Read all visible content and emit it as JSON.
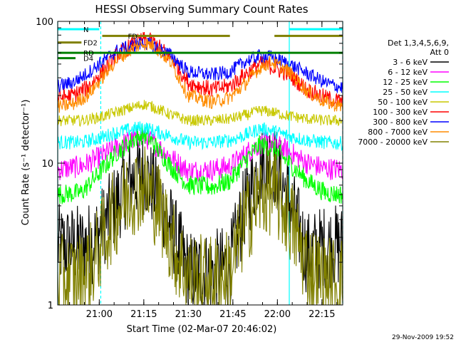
{
  "chart_data": {
    "type": "line",
    "title": "HESSI Observing Summary Count Rates",
    "xlabel": "Start Time (02-Mar-07 20:46:02)",
    "ylabel": "Count Rate (s⁻¹ detector⁻¹)",
    "yscale": "log",
    "ylim": [
      1,
      100
    ],
    "xlim_minutes": [
      0,
      96
    ],
    "x_tick_labels": [
      "21:00",
      "21:15",
      "21:30",
      "21:45",
      "22:00",
      "22:15"
    ],
    "x_tick_minutes": [
      14,
      29,
      44,
      59,
      74,
      89
    ],
    "y_tick_labels": [
      "1",
      "10",
      "100"
    ],
    "y_tick_values": [
      1,
      10,
      100
    ],
    "legend_title": [
      "Det 1,3,4,5,6,9,",
      "Att 0"
    ],
    "legend_placement": "right",
    "timestamp": "29-Nov-2009 19:52",
    "series": [
      {
        "name": "3 - 6 keV",
        "color": "#000000",
        "x": [
          0,
          8,
          12,
          18,
          24,
          29,
          34,
          40,
          44,
          52,
          58,
          63,
          68,
          72,
          78,
          84,
          90,
          96
        ],
        "values": [
          2.6,
          2.6,
          2.8,
          4.5,
          7.5,
          8.5,
          6.0,
          2.8,
          1.7,
          1.7,
          1.9,
          5.0,
          9.5,
          11,
          5.5,
          2.3,
          2.6,
          2.6
        ]
      },
      {
        "name": "6 - 12 keV",
        "color": "#ff00ff",
        "x": [
          0,
          8,
          14,
          20,
          26,
          29,
          32,
          38,
          44,
          52,
          58,
          64,
          68,
          72,
          78,
          84,
          90,
          96
        ],
        "values": [
          9.0,
          9.5,
          11,
          13,
          15,
          15.5,
          14,
          11,
          8.8,
          9.0,
          9.5,
          12,
          13.5,
          14,
          12,
          10,
          9.2,
          9.0
        ]
      },
      {
        "name": "12 - 25 keV",
        "color": "#00ff00",
        "x": [
          0,
          8,
          14,
          20,
          26,
          29,
          32,
          38,
          44,
          52,
          58,
          64,
          68,
          72,
          78,
          84,
          90,
          96
        ],
        "values": [
          6.0,
          6.2,
          8.5,
          12,
          15,
          16,
          14,
          9.5,
          7.0,
          6.8,
          7.5,
          11,
          13.5,
          13,
          10,
          7.5,
          6.2,
          6.0
        ]
      },
      {
        "name": "25 - 50 keV",
        "color": "#00ffff",
        "x": [
          0,
          8,
          14,
          20,
          26,
          29,
          32,
          38,
          44,
          52,
          58,
          64,
          68,
          72,
          78,
          84,
          90,
          96
        ],
        "values": [
          14,
          14,
          15,
          16.5,
          17.5,
          18,
          17,
          15.5,
          14,
          14,
          14.5,
          16,
          17.5,
          17,
          15.5,
          14.5,
          14,
          13.8
        ]
      },
      {
        "name": "50 - 100 keV",
        "color": "#c8c800",
        "x": [
          0,
          8,
          14,
          20,
          26,
          29,
          32,
          38,
          44,
          52,
          58,
          64,
          68,
          72,
          78,
          84,
          90,
          96
        ],
        "values": [
          20,
          20,
          21,
          23,
          25,
          26,
          25,
          22,
          20,
          20,
          20.5,
          22,
          23.5,
          23,
          21.5,
          20.5,
          20,
          20
        ]
      },
      {
        "name": "100 - 300 keV",
        "color": "#ff0000",
        "x": [
          0,
          5,
          10,
          15,
          20,
          26,
          29,
          32,
          38,
          44,
          52,
          58,
          63,
          68,
          72,
          78,
          84,
          90,
          96
        ],
        "values": [
          29,
          30,
          34,
          44,
          58,
          70,
          74,
          72,
          56,
          37,
          33,
          35,
          42,
          50,
          48,
          42,
          33,
          29,
          27
        ]
      },
      {
        "name": "300 - 800 keV",
        "color": "#0000ff",
        "x": [
          0,
          5,
          10,
          15,
          20,
          26,
          29,
          32,
          38,
          44,
          52,
          58,
          63,
          68,
          72,
          78,
          84,
          90,
          96
        ],
        "values": [
          35,
          37,
          43,
          52,
          62,
          68,
          70,
          68,
          58,
          44,
          42,
          44,
          52,
          57,
          56,
          50,
          43,
          37,
          34
        ]
      },
      {
        "name": "800 - 7000 keV",
        "color": "#ff8c00",
        "x": [
          0,
          5,
          10,
          15,
          20,
          26,
          29,
          32,
          38,
          44,
          52,
          58,
          63,
          68,
          72,
          78,
          84,
          90,
          96
        ],
        "values": [
          25,
          26,
          30,
          40,
          54,
          66,
          70,
          68,
          52,
          30,
          27,
          29,
          36,
          47,
          52,
          44,
          32,
          27,
          25
        ]
      },
      {
        "name": "7000 - 20000 keV",
        "color": "#808000",
        "x": [
          0,
          8,
          12,
          18,
          24,
          29,
          34,
          40,
          44,
          52,
          58,
          63,
          68,
          72,
          78,
          84,
          90,
          96
        ],
        "values": [
          1.5,
          1.6,
          2.0,
          4.0,
          6.2,
          7.0,
          5.0,
          2.3,
          1.6,
          1.5,
          1.7,
          3.8,
          5.8,
          6.5,
          4.2,
          1.9,
          1.5,
          1.5
        ]
      }
    ],
    "flags": [
      {
        "label": "N",
        "color": "#00ffff",
        "value": 88,
        "ranges": [
          [
            0,
            14
          ],
          [
            78,
            96
          ]
        ]
      },
      {
        "label": "FD",
        "color": "#808000",
        "value": 79,
        "ranges": [
          [
            15,
            58
          ],
          [
            73,
            96
          ]
        ]
      },
      {
        "label": "FD2",
        "color": "#808000",
        "value": 71,
        "ranges": [
          [
            0,
            8
          ]
        ]
      },
      {
        "label": "RD",
        "color": "#008000",
        "value": 60,
        "ranges": [
          [
            0,
            96
          ]
        ]
      },
      {
        "label": "D4",
        "color": "#008000",
        "value": 55,
        "ranges": [
          [
            0,
            6
          ]
        ]
      }
    ],
    "vlines": [
      {
        "x": 0,
        "color": "#00ffff",
        "dash": false
      },
      {
        "x": 14.5,
        "color": "#00ffff",
        "dash": true
      },
      {
        "x": 78,
        "color": "#00ffff",
        "dash": false
      },
      {
        "x": 96,
        "color": "#00ffff",
        "dash": true
      }
    ]
  }
}
